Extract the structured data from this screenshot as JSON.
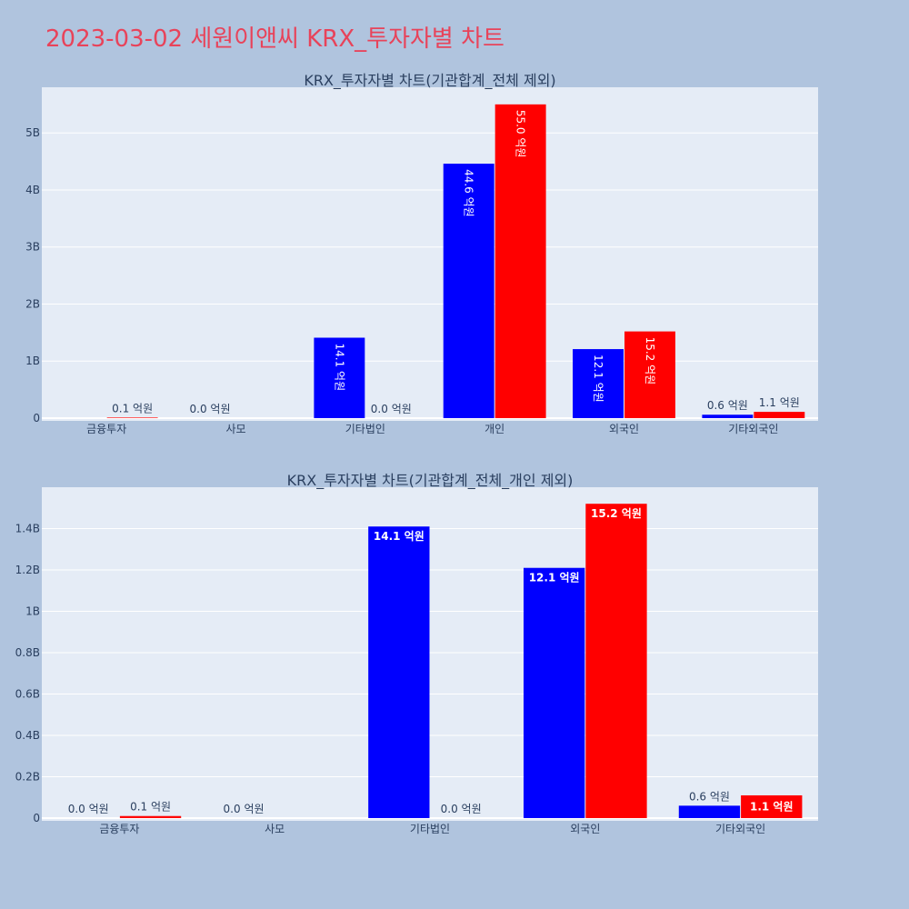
{
  "title": "2023-03-02 세원이앤씨 KRX_투자자별 차트",
  "colors": {
    "series1": "#0000ff",
    "series2": "#ff0000",
    "plot_bg": "#e5ecf6",
    "page_bg": "#b0c4de",
    "title": "#e8435a"
  },
  "chart_data": [
    {
      "type": "bar",
      "title": "KRX_투자자별 차트(기관합계_전체 제외)",
      "categories": [
        "금융투자",
        "사모",
        "기타법인",
        "개인",
        "외국인",
        "기타외국인"
      ],
      "series": [
        {
          "values": [
            0,
            0,
            1410000000,
            4460000000,
            1210000000,
            60000000
          ],
          "labels": [
            "",
            "0.0 억원",
            "14.1 억원",
            "44.6 억원",
            "12.1 억원",
            "0.6 억원"
          ]
        },
        {
          "values": [
            10000000,
            0,
            0,
            5500000000,
            1520000000,
            110000000
          ],
          "labels": [
            "0.1 억원",
            "",
            "0.0 억원",
            "55.0 억원",
            "15.2 억원",
            "1.1 억원"
          ]
        }
      ],
      "ylim": [
        0,
        5800000000
      ],
      "yticks": [
        0,
        1000000000,
        2000000000,
        3000000000,
        4000000000,
        5000000000
      ],
      "ytick_labels": [
        "0",
        "1B",
        "2B",
        "3B",
        "4B",
        "5B"
      ],
      "grid": true
    },
    {
      "type": "bar",
      "title": "KRX_투자자별 차트(기관합계_전체_개인 제외)",
      "categories": [
        "금융투자",
        "사모",
        "기타법인",
        "외국인",
        "기타외국인"
      ],
      "series": [
        {
          "values": [
            0,
            0,
            1410000000,
            1210000000,
            60000000
          ],
          "labels": [
            "0.0 억원",
            "0.0 억원",
            "14.1 억원",
            "12.1 억원",
            "0.6 억원"
          ]
        },
        {
          "values": [
            10000000,
            0,
            0,
            1520000000,
            110000000
          ],
          "labels": [
            "0.1 억원",
            "",
            "0.0 억원",
            "15.2 억원",
            "1.1 억원"
          ]
        }
      ],
      "ylim": [
        0,
        1600000000
      ],
      "yticks": [
        0,
        200000000,
        400000000,
        600000000,
        800000000,
        1000000000,
        1200000000,
        1400000000
      ],
      "ytick_labels": [
        "0",
        "0.2B",
        "0.4B",
        "0.6B",
        "0.8B",
        "1B",
        "1.2B",
        "1.4B"
      ],
      "grid": true
    }
  ]
}
